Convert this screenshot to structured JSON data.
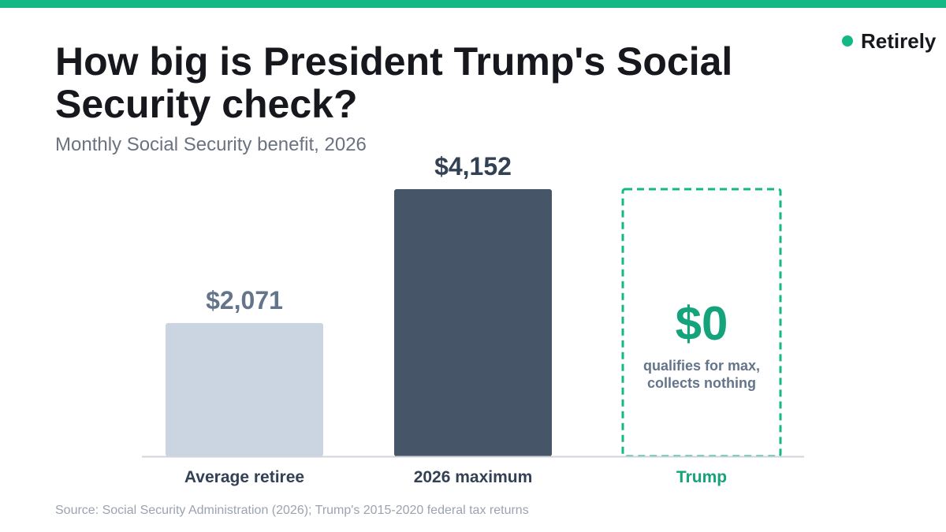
{
  "brand": {
    "name": "Retirely",
    "accent_color": "#14b885"
  },
  "header": {
    "title": "How big is President Trump's Social Security check?",
    "subtitle": "Monthly Social Security benefit, 2026"
  },
  "chart_data": {
    "type": "bar",
    "title": "How big is President Trump's Social Security check?",
    "subtitle": "Monthly Social Security benefit, 2026",
    "categories": [
      "Average retiree",
      "2026 maximum",
      "Trump"
    ],
    "values": [
      2071,
      4152,
      0
    ],
    "value_labels": [
      "$2,071",
      "$4,152",
      "$0"
    ],
    "bar_colors": [
      "#cbd5e1",
      "#475569",
      "#14b885"
    ],
    "label_colors": [
      "#64748b",
      "#334155",
      "#14a37a"
    ],
    "category_label_colors": [
      "#334155",
      "#334155",
      "#14a37a"
    ],
    "highlight": {
      "category": "Trump",
      "style": "dashed outline",
      "note_lines": [
        "qualifies for max,",
        "collects nothing"
      ]
    },
    "ylim": [
      0,
      4152
    ],
    "xlabel": "",
    "ylabel": "",
    "grid": false,
    "legend": "none"
  },
  "footer": {
    "source": "Source: Social Security Administration (2026); Trump's 2015-2020 federal tax returns"
  }
}
